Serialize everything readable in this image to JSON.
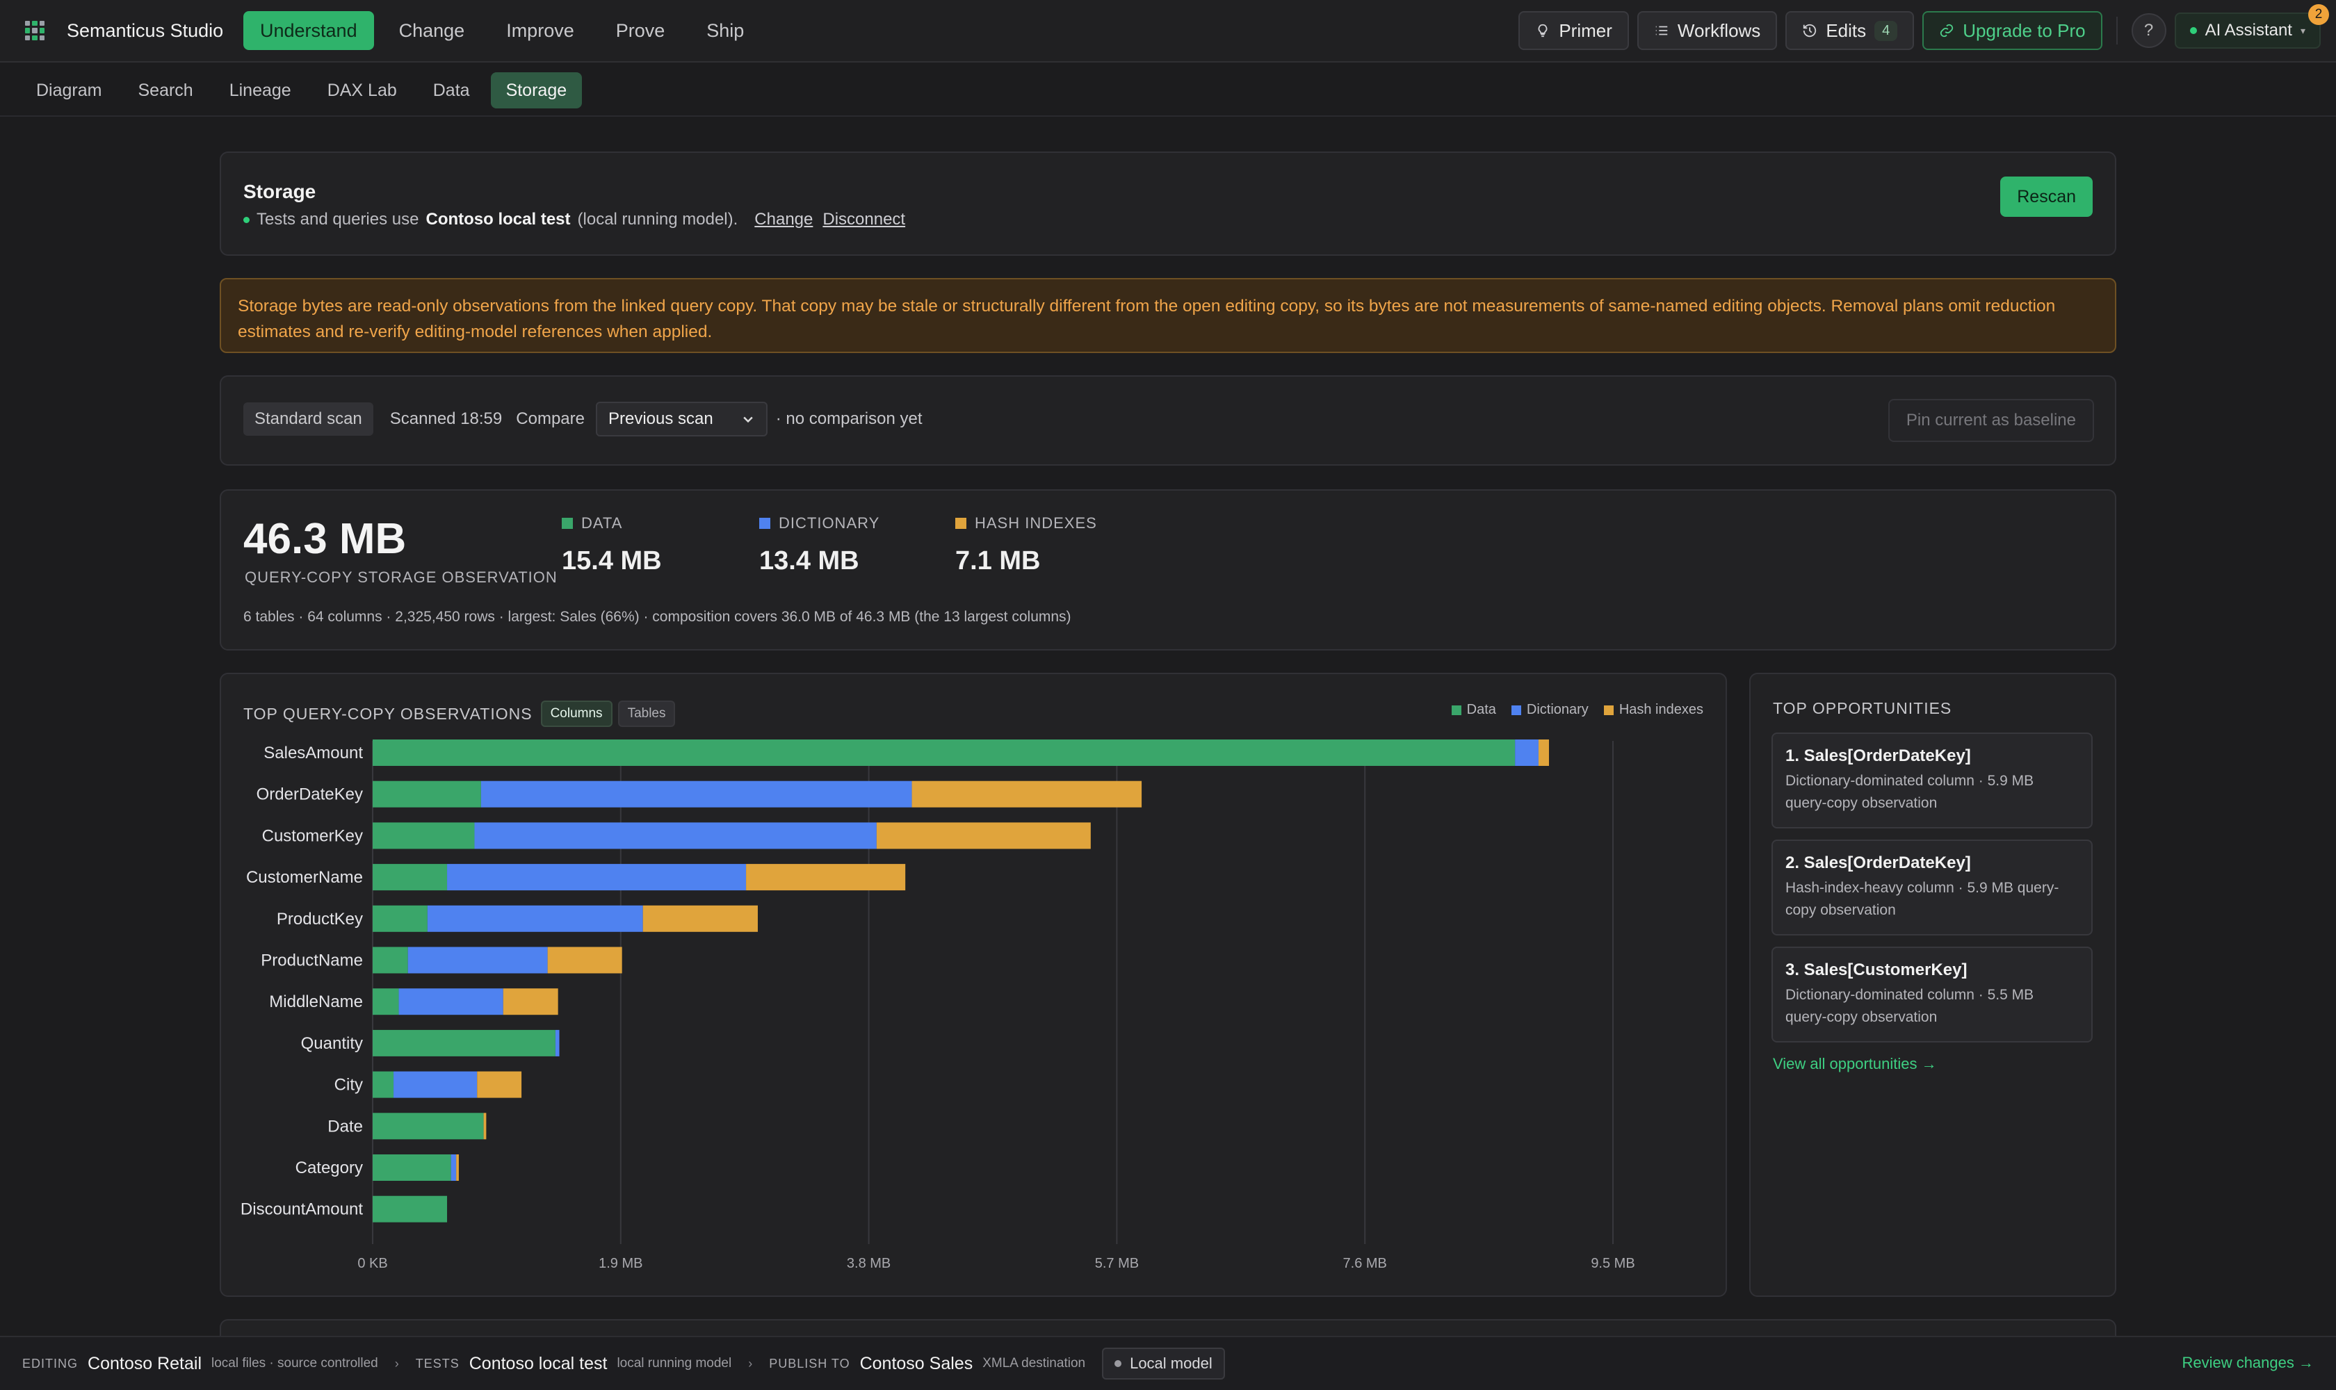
{
  "app": {
    "title": "Semanticus Studio"
  },
  "nav": {
    "tabs": [
      "Understand",
      "Change",
      "Improve",
      "Prove",
      "Ship"
    ],
    "active": "Understand"
  },
  "toolbar": {
    "primer": "Primer",
    "workflows": "Workflows",
    "edits": "Edits",
    "edits_count": "4",
    "upgrade": "Upgrade to Pro",
    "help": "?",
    "ai_assistant": "AI Assistant",
    "notification_count": "2"
  },
  "subnav": {
    "tabs": [
      "Diagram",
      "Search",
      "Lineage",
      "DAX Lab",
      "Data",
      "Storage"
    ],
    "active": "Storage"
  },
  "storage": {
    "title": "Storage",
    "line_prefix": "Tests and queries use",
    "model_name": "Contoso local test",
    "line_suffix": "(local running model).",
    "change_link": "Change",
    "disconnect_link": "Disconnect",
    "rescan": "Rescan"
  },
  "warning": "Storage bytes are read-only observations from the linked query copy. That copy may be stale or structurally different from the open editing copy, so its bytes are not measurements of same-named editing objects. Removal plans omit reduction estimates and re-verify editing-model references when applied.",
  "scan": {
    "type": "Standard scan",
    "scanned": "Scanned 18:59",
    "compare_label": "Compare",
    "compare_value": "Previous scan",
    "comparison_note": "· no comparison yet",
    "pin": "Pin current as baseline"
  },
  "summary": {
    "total": "46.3 MB",
    "total_label": "QUERY-COPY STORAGE OBSERVATION",
    "metrics": [
      {
        "label": "DATA",
        "value": "15.4 MB",
        "color": "#3aa66a"
      },
      {
        "label": "DICTIONARY",
        "value": "13.4 MB",
        "color": "#4f82f0"
      },
      {
        "label": "HASH INDEXES",
        "value": "7.1 MB",
        "color": "#e0a43c"
      }
    ],
    "note": "6 tables · 64 columns · 2,325,450 rows · largest: Sales (66%) · composition covers 36.0 MB of 46.3 MB (the 13 largest columns)"
  },
  "chart_panel": {
    "title": "TOP QUERY-COPY OBSERVATIONS",
    "toggle": [
      "Columns",
      "Tables"
    ],
    "toggle_active": "Columns",
    "legend": [
      "Data",
      "Dictionary",
      "Hash indexes"
    ]
  },
  "chart_data": {
    "type": "bar",
    "orientation": "horizontal",
    "stacked": true,
    "unit": "MB",
    "categories": [
      "SalesAmount",
      "OrderDateKey",
      "CustomerKey",
      "CustomerName",
      "ProductKey",
      "ProductName",
      "MiddleName",
      "Quantity",
      "City",
      "Date",
      "Category",
      "DiscountAmount"
    ],
    "series": [
      {
        "name": "Data",
        "color": "#3aa66a",
        "values": [
          8.75,
          0.83,
          0.78,
          0.57,
          0.42,
          0.27,
          0.2,
          1.4,
          0.16,
          0.85,
          0.6,
          0.57
        ]
      },
      {
        "name": "Dictionary",
        "color": "#4f82f0",
        "values": [
          0.18,
          3.3,
          3.08,
          2.29,
          1.65,
          1.07,
          0.8,
          0.03,
          0.64,
          0.0,
          0.04,
          0.0
        ]
      },
      {
        "name": "Hash indexes",
        "color": "#e0a43c",
        "values": [
          0.08,
          1.76,
          1.64,
          1.22,
          0.88,
          0.57,
          0.42,
          0.0,
          0.34,
          0.02,
          0.02,
          0.0
        ]
      }
    ],
    "x_ticks": [
      "0 KB",
      "1.9 MB",
      "3.8 MB",
      "5.7 MB",
      "7.6 MB",
      "9.5 MB"
    ],
    "x_tick_values": [
      0,
      1.9,
      3.8,
      5.7,
      7.6,
      9.5
    ],
    "xlim": [
      0,
      9.5
    ],
    "grid": true,
    "legend_position": "top-right"
  },
  "opportunities": {
    "title": "TOP OPPORTUNITIES",
    "items": [
      {
        "title": "1. Sales[OrderDateKey]",
        "desc": "Dictionary-dominated column · 5.9 MB query-copy observation"
      },
      {
        "title": "2. Sales[OrderDateKey]",
        "desc": "Hash-index-heavy column · 5.9 MB query-copy observation"
      },
      {
        "title": "3. Sales[CustomerKey]",
        "desc": "Dictionary-dominated column · 5.5 MB query-copy observation"
      }
    ],
    "view_all": "View all opportunities →"
  },
  "statusbar": {
    "editing_label": "EDITING",
    "editing_value": "Contoso Retail",
    "editing_sub": "local files · source controlled",
    "tests_label": "TESTS",
    "tests_value": "Contoso local test",
    "tests_sub": "local running model",
    "publish_label": "PUBLISH TO",
    "publish_value": "Contoso Sales",
    "publish_sub": "XMLA destination",
    "local_model": "Local model",
    "review": "Review changes →"
  }
}
